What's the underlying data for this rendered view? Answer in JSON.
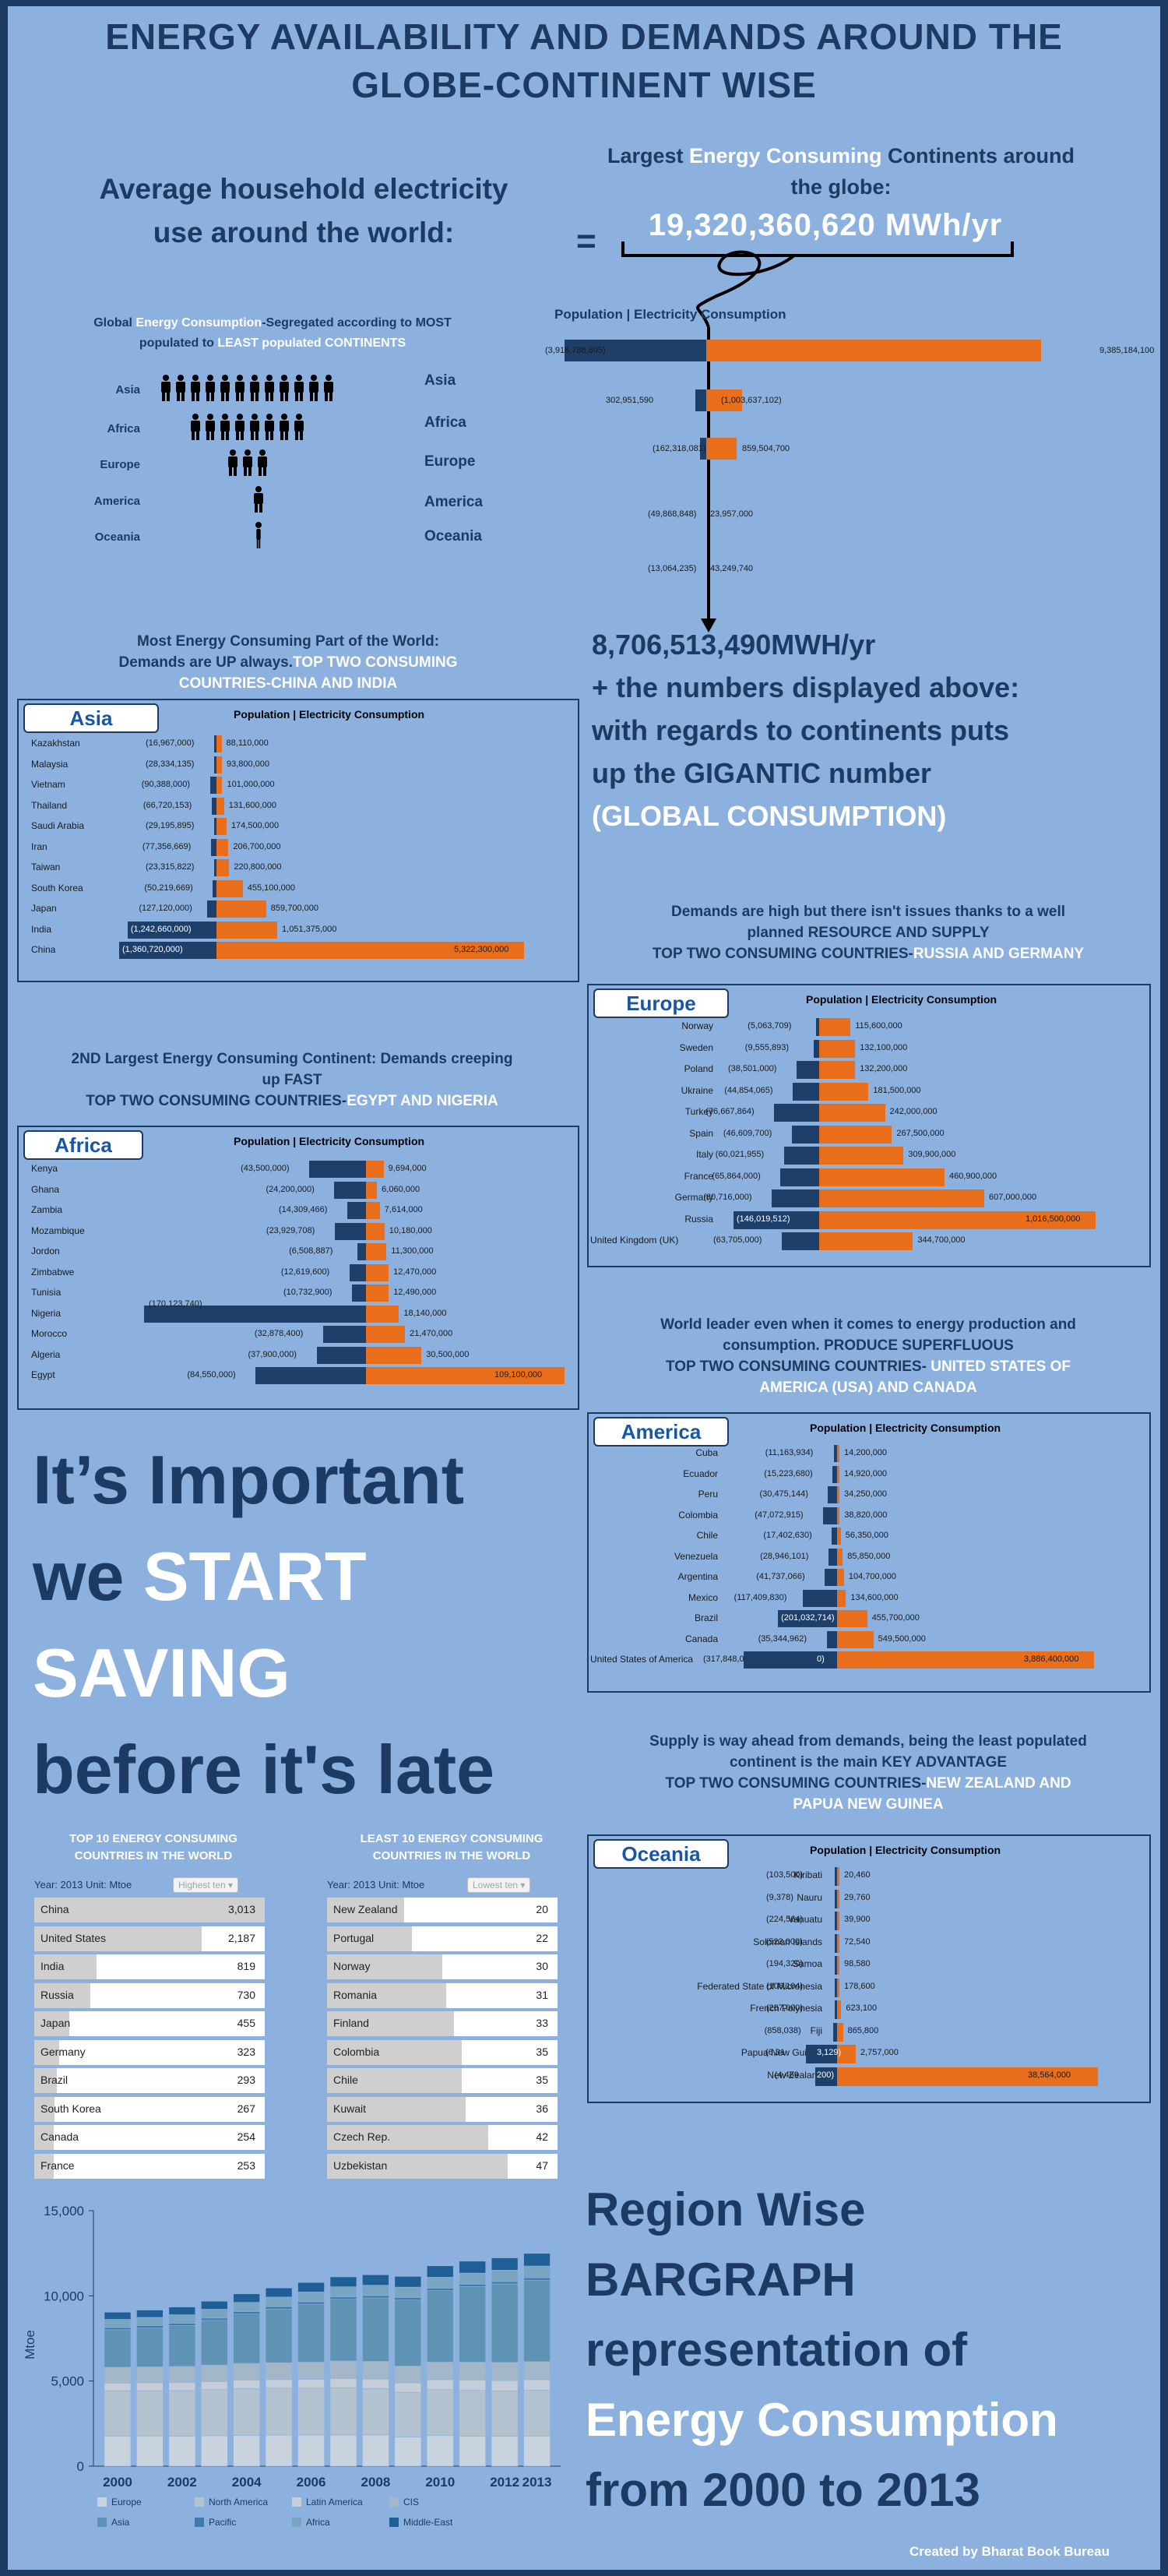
{
  "header": {
    "title_line1": "ENERGY AVAILABILITY AND DEMANDS AROUND THE",
    "title_line2": "GLOBE-CONTINENT WISE"
  },
  "intro": {
    "avg_line1": "Average household electricity",
    "avg_line2": "use around the world:",
    "equals": "=",
    "largest_a": "Largest ",
    "largest_b": "Energy Consuming",
    "largest_c": " Continents around",
    "largest_d": "the globe:",
    "big_number": "19,320,360,620 MWh/yr"
  },
  "global": {
    "heading_a": "Global ",
    "heading_b": "Energy Consumption",
    "heading_c": "-Segregated according to MOST",
    "heading_d": "populated to ",
    "heading_e": "LEAST",
    "heading_f": " populated CONTINENTS",
    "pop_header": "Population | Electricity Consumption",
    "continents": [
      {
        "left": "Asia",
        "right": "Asia",
        "people": 12,
        "pop": "(3,918,788,805)",
        "cons": "9,385,184,100",
        "popv": 3918788805,
        "consv": 9385184100
      },
      {
        "left": "Africa",
        "right": "Africa",
        "people": 8,
        "pop": "302,951,590",
        "cons": "(1,003,637,102)",
        "popv": 302951590,
        "consv": 1003637102
      },
      {
        "left": "Europe",
        "right": "Europe",
        "people": 3,
        "pop": "(162,318,081)",
        "cons": "859,504,700",
        "popv": 162318081,
        "consv": 859504700
      },
      {
        "left": "America",
        "right": "America",
        "people": 1,
        "pop": "(49,868,848)",
        "cons": "23,957,000",
        "popv": 49868848,
        "consv": 23957000
      },
      {
        "left": "Oceania",
        "right": "Oceania",
        "people": 1,
        "pop": "(13,064,235)",
        "cons": "43,249,740",
        "popv": 13064235,
        "consv": 43249740
      }
    ]
  },
  "summary": {
    "line1": "8,706,513,490MWH/yr",
    "line2": "+ the numbers displayed above:",
    "line3": "with regards to continents puts",
    "line4": "up the GIGANTIC number",
    "line5": "(GLOBAL CONSUMPTION)"
  },
  "asia": {
    "heading1": "Most Energy Consuming Part of the World:",
    "heading2a": "Demands are UP always.",
    "heading2b": "TOP TWO CONSUMING",
    "heading3": "COUNTRIES-CHINA AND INDIA",
    "badge": "Asia",
    "header": "Population | Electricity Consumption",
    "rows": [
      {
        "name": "Kazakhstan",
        "pop": "(16,967,000)",
        "cons": "88,110,000",
        "popv": 16967000,
        "consv": 88110000
      },
      {
        "name": "Malaysia",
        "pop": "(28,334,135)",
        "cons": "93,800,000",
        "popv": 28334135,
        "consv": 93800000
      },
      {
        "name": "Vietnam",
        "pop": "(90,388,000)",
        "cons": "101,000,000",
        "popv": 90388000,
        "consv": 101000000
      },
      {
        "name": "Thailand",
        "pop": "(66,720,153)",
        "cons": "131,600,000",
        "popv": 66720153,
        "consv": 131600000
      },
      {
        "name": "Saudi Arabia",
        "pop": "(29,195,895)",
        "cons": "174,500,000",
        "popv": 29195895,
        "consv": 174500000
      },
      {
        "name": "Iran",
        "pop": "(77,356,669)",
        "cons": "206,700,000",
        "popv": 77356669,
        "consv": 206700000
      },
      {
        "name": "Taiwan",
        "pop": "(23,315,822)",
        "cons": "220,800,000",
        "popv": 23315822,
        "consv": 220800000
      },
      {
        "name": "South Korea",
        "pop": "(50,219,669)",
        "cons": "455,100,000",
        "popv": 50219669,
        "consv": 455100000
      },
      {
        "name": "Japan",
        "pop": "(127,120,000)",
        "cons": "859,700,000",
        "popv": 127120000,
        "consv": 859700000
      },
      {
        "name": "India",
        "pop": "(1,242,660,000)",
        "cons": "1,051,375,000",
        "popv": 1242660000,
        "consv": 1051375000
      },
      {
        "name": "China",
        "pop": "(1,360,720,000)",
        "cons": "5,322,300,000",
        "popv": 1360720000,
        "consv": 5322300000
      }
    ]
  },
  "europe": {
    "heading1": "Demands are high but there isn't issues thanks to a well",
    "heading2": "planned RESOURCE AND SUPPLY",
    "heading3a": "TOP TWO CONSUMING COUNTRIES-",
    "heading3b": "RUSSIA AND GERMANY",
    "badge": "Europe",
    "header": "Population | Electricity Consumption",
    "rows": [
      {
        "name": "Norway",
        "pop": "(5,063,709)",
        "cons": "115,600,000",
        "popv": 5063709,
        "consv": 115600000
      },
      {
        "name": "Sweden",
        "pop": "(9,555,893)",
        "cons": "132,100,000",
        "popv": 9555893,
        "consv": 132100000
      },
      {
        "name": "Poland",
        "pop": "(38,501,000)",
        "cons": "132,200,000",
        "popv": 38501000,
        "consv": 132200000
      },
      {
        "name": "Ukraine",
        "pop": "(44,854,065)",
        "cons": "181,500,000",
        "popv": 44854065,
        "consv": 181500000
      },
      {
        "name": "Turkey",
        "pop": "(76,667,864)",
        "cons": "242,000,000",
        "popv": 76667864,
        "consv": 242000000
      },
      {
        "name": "Spain",
        "pop": "(46,609,700)",
        "cons": "267,500,000",
        "popv": 46609700,
        "consv": 267500000
      },
      {
        "name": "Italy",
        "pop": "(60,021,955)",
        "cons": "309,900,000",
        "popv": 60021955,
        "consv": 309900000
      },
      {
        "name": "France",
        "pop": "(65,864,000)",
        "cons": "460,900,000",
        "popv": 65864000,
        "consv": 460900000
      },
      {
        "name": "Germany",
        "pop": "(80,716,000)",
        "cons": "607,000,000",
        "popv": 80716000,
        "consv": 607000000
      },
      {
        "name": "Russia",
        "pop": "(146,019,512)",
        "cons": "1,016,500,000",
        "popv": 146019512,
        "consv": 1016500000
      },
      {
        "name": "United Kingdom (UK)",
        "pop": "(63,705,000)",
        "cons": "344,700,000",
        "popv": 63705000,
        "consv": 344700000
      }
    ]
  },
  "africa": {
    "heading1": "2ND Largest Energy Consuming Continent: Demands creeping",
    "heading2": "up FAST",
    "heading3a": "TOP TWO CONSUMING COUNTRIES-",
    "heading3b": "EGYPT AND NIGERIA",
    "badge": "Africa",
    "header": "Population | Electricity Consumption",
    "rows": [
      {
        "name": "Kenya",
        "pop": "(43,500,000)",
        "cons": "9,694,000",
        "popv": 43500000,
        "consv": 9694000
      },
      {
        "name": "Ghana",
        "pop": "(24,200,000)",
        "cons": "6,060,000",
        "popv": 24200000,
        "consv": 6060000
      },
      {
        "name": "Zambia",
        "pop": "(14,309,466)",
        "cons": "7,614,000",
        "popv": 14309466,
        "consv": 7614000
      },
      {
        "name": "Mozambique",
        "pop": "(23,929,708)",
        "cons": "10,180,000",
        "popv": 23929708,
        "consv": 10180000
      },
      {
        "name": "Jordon",
        "pop": "(6,508,887)",
        "cons": "11,300,000",
        "popv": 6508887,
        "consv": 11300000
      },
      {
        "name": "Zimbabwe",
        "pop": "(12,619,600)",
        "cons": "12,470,000",
        "popv": 12619600,
        "consv": 12470000
      },
      {
        "name": "Tunisia",
        "pop": "(10,732,900)",
        "cons": "12,490,000",
        "popv": 10732900,
        "consv": 12490000
      },
      {
        "name": "Nigeria",
        "pop": "(170,123,740)",
        "cons": "18,140,000",
        "popv": 170123740,
        "consv": 18140000
      },
      {
        "name": "Morocco",
        "pop": "(32,878,400)",
        "cons": "21,470,000",
        "popv": 32878400,
        "consv": 21470000
      },
      {
        "name": "Algeria",
        "pop": "(37,900,000)",
        "cons": "30,500,000",
        "popv": 37900000,
        "consv": 30500000
      },
      {
        "name": "Egypt",
        "pop": "(84,550,000)",
        "cons": "109,100,000",
        "popv": 84550000,
        "consv": 109100000
      }
    ]
  },
  "america": {
    "heading1": "World leader even when it comes to energy production and",
    "heading2": "consumption. PRODUCE SUPERFLUOUS",
    "heading3a": "TOP TWO CONSUMING COUNTRIES- ",
    "heading3b": "UNITED STATES OF",
    "heading4": "AMERICA (USA) AND CANADA",
    "badge": "America",
    "header": "Population | Electricity Consumption",
    "rows": [
      {
        "name": "Cuba",
        "pop": "(11,163,934)",
        "cons": "14,200,000",
        "popv": 11163934,
        "consv": 14200000
      },
      {
        "name": "Ecuador",
        "pop": "(15,223,680)",
        "cons": "14,920,000",
        "popv": 15223680,
        "consv": 14920000
      },
      {
        "name": "Peru",
        "pop": "(30,475,144)",
        "cons": "34,250,000",
        "popv": 30475144,
        "consv": 34250000
      },
      {
        "name": "Colombia",
        "pop": "(47,072,915)",
        "cons": "38,820,000",
        "popv": 47072915,
        "consv": 38820000
      },
      {
        "name": "Chile",
        "pop": "(17,402,630)",
        "cons": "56,350,000",
        "popv": 17402630,
        "consv": 56350000
      },
      {
        "name": "Venezuela",
        "pop": "(28,946,101)",
        "cons": "85,850,000",
        "popv": 28946101,
        "consv": 85850000
      },
      {
        "name": "Argentina",
        "pop": "(41,737,066)",
        "cons": "104,700,000",
        "popv": 41737066,
        "consv": 104700000
      },
      {
        "name": "Mexico",
        "pop": "(117,409,830)",
        "cons": "134,600,000",
        "popv": 117409830,
        "consv": 134600000
      },
      {
        "name": "Brazil",
        "pop": "(201,032,714)",
        "cons": "455,700,000",
        "popv": 201032714,
        "consv": 455700000
      },
      {
        "name": "Canada",
        "pop": "(35,344,962)",
        "cons": "549,500,000",
        "popv": 35344962,
        "consv": 549500000
      },
      {
        "name": "United States of America",
        "pop": "(317,848,0",
        "popb": "0)",
        "cons": "3,886,400,000",
        "popv": 317848000,
        "consv": 3886400000
      }
    ]
  },
  "oceania": {
    "heading1": "Supply is way ahead from demands, being the least populated",
    "heading2": "continent is the main KEY ADVANTAGE",
    "heading3a": "TOP TWO CONSUMING COUNTRIES-",
    "heading3b": "NEW ZEALAND AND",
    "heading4": "PAPUA NEW GUINEA",
    "badge": "Oceania",
    "header": "Population | Electricity Consumption",
    "rows": [
      {
        "name": "Kiribati",
        "pop": "(103,500)",
        "cons": "20,460",
        "popv": 103500,
        "consv": 20460
      },
      {
        "name": "Nauru",
        "pop": "(9,378)",
        "cons": "29,760",
        "popv": 9378,
        "consv": 29760
      },
      {
        "name": "Vanuatu",
        "pop": "(224,564)",
        "cons": "39,900",
        "popv": 224564,
        "consv": 39900
      },
      {
        "name": "Solomon Islands",
        "pop": "(523,000)",
        "cons": "72,540",
        "popv": 523000,
        "consv": 72540
      },
      {
        "name": "Samoa",
        "pop": "(194,320)",
        "cons": "98,580",
        "popv": 194320,
        "consv": 98580
      },
      {
        "name": "Federated State of Micronesia",
        "pop": "(106,104)",
        "cons": "178,600",
        "popv": 106104,
        "consv": 178600
      },
      {
        "name": "French Polynesia",
        "pop": "(267,000)",
        "cons": "623,100",
        "popv": 267000,
        "consv": 623100
      },
      {
        "name": "Fiji",
        "pop": "(858,038)",
        "cons": "865,800",
        "popv": 858038,
        "consv": 865800
      },
      {
        "name": "Papua New Guinea",
        "pop": "(6,31",
        "popb": "3,129)",
        "cons": "2,757,000",
        "popv": 6313129,
        "consv": 2757000
      },
      {
        "name": "New Zealand",
        "pop": "(4,469",
        "popb": "200)",
        "cons": "38,564,000",
        "popv": 4469200,
        "consv": 38564000
      }
    ]
  },
  "slogan": {
    "l1": "It’s Important",
    "l2a": "we ",
    "l2b": "START",
    "l3": "SAVING",
    "l4": "before it's late"
  },
  "top10": {
    "title1": "TOP 10 ENERGY CONSUMING",
    "title2": "COUNTRIES IN THE WORLD",
    "meta": "Year: 2013   Unit: Mtoe",
    "button": "Highest ten ▾",
    "rows": [
      {
        "name": "China",
        "value": "3,013",
        "v": 3013
      },
      {
        "name": "United States",
        "value": "2,187",
        "v": 2187
      },
      {
        "name": "India",
        "value": "819",
        "v": 819
      },
      {
        "name": "Russia",
        "value": "730",
        "v": 730
      },
      {
        "name": "Japan",
        "value": "455",
        "v": 455
      },
      {
        "name": "Germany",
        "value": "323",
        "v": 323
      },
      {
        "name": "Brazil",
        "value": "293",
        "v": 293
      },
      {
        "name": "South Korea",
        "value": "267",
        "v": 267
      },
      {
        "name": "Canada",
        "value": "254",
        "v": 254
      },
      {
        "name": "France",
        "value": "253",
        "v": 253
      }
    ]
  },
  "least10": {
    "title1": "LEAST 10 ENERGY CONSUMING",
    "title2": "COUNTRIES IN THE WORLD",
    "meta": "Year: 2013   Unit: Mtoe",
    "button": "Lowest ten ▾",
    "rows": [
      {
        "name": "New Zealand",
        "value": "20",
        "v": 20
      },
      {
        "name": "Portugal",
        "value": "22",
        "v": 22
      },
      {
        "name": "Norway",
        "value": "30",
        "v": 30
      },
      {
        "name": "Romania",
        "value": "31",
        "v": 31
      },
      {
        "name": "Finland",
        "value": "33",
        "v": 33
      },
      {
        "name": "Colombia",
        "value": "35",
        "v": 35
      },
      {
        "name": "Chile",
        "value": "35",
        "v": 35
      },
      {
        "name": "Kuwait",
        "value": "36",
        "v": 36
      },
      {
        "name": "Czech Rep.",
        "value": "42",
        "v": 42
      },
      {
        "name": "Uzbekistan",
        "value": "47",
        "v": 47
      }
    ]
  },
  "region": {
    "l1": "Region Wise",
    "l2": "BARGRAPH",
    "l3": "representation of",
    "l4": "Energy Consumption",
    "l5": "from 2000 to 2013"
  },
  "footer": {
    "credit": "Created by Bharat Book Bureau"
  },
  "chart_data": {
    "type": "bar",
    "stacked": true,
    "title": "",
    "xlabel": "",
    "ylabel": "Mtoe",
    "ylim": [
      0,
      15000
    ],
    "yticks": [
      "0",
      "5,000",
      "10,000",
      "15,000"
    ],
    "xticks": [
      "2000",
      "2002",
      "2004",
      "2006",
      "2008",
      "2010",
      "2012",
      "2013"
    ],
    "categories": [
      "2000",
      "2001",
      "2002",
      "2003",
      "2004",
      "2005",
      "2006",
      "2007",
      "2008",
      "2009",
      "2010",
      "2011",
      "2012",
      "2013"
    ],
    "series": [
      {
        "name": "Europe",
        "values": [
          1750,
          1770,
          1760,
          1790,
          1810,
          1820,
          1830,
          1830,
          1830,
          1720,
          1800,
          1760,
          1760,
          1750
        ]
      },
      {
        "name": "North America",
        "values": [
          2680,
          2660,
          2680,
          2700,
          2750,
          2760,
          2740,
          2780,
          2730,
          2620,
          2700,
          2690,
          2660,
          2710
        ]
      },
      {
        "name": "Latin America",
        "values": [
          450,
          460,
          465,
          475,
          490,
          505,
          520,
          540,
          555,
          555,
          580,
          595,
          610,
          620
        ]
      },
      {
        "name": "CIS",
        "values": [
          930,
          945,
          950,
          975,
          985,
          990,
          1020,
          1030,
          1040,
          980,
          1030,
          1060,
          1070,
          1060
        ]
      },
      {
        "name": "Asia",
        "values": [
          2200,
          2280,
          2400,
          2620,
          2900,
          3150,
          3400,
          3620,
          3720,
          3880,
          4200,
          4440,
          4600,
          4780
        ]
      },
      {
        "name": "Pacific",
        "values": [
          130,
          130,
          132,
          134,
          138,
          138,
          140,
          142,
          140,
          137,
          142,
          140,
          138,
          140
        ]
      },
      {
        "name": "Africa",
        "values": [
          480,
          490,
          505,
          520,
          545,
          565,
          575,
          590,
          610,
          620,
          640,
          650,
          670,
          690
        ]
      },
      {
        "name": "Middle-East",
        "values": [
          420,
          430,
          450,
          470,
          500,
          530,
          560,
          580,
          610,
          630,
          670,
          700,
          720,
          740
        ]
      }
    ],
    "legend": "bottom",
    "colors": {
      "Europe": "#c9d3de",
      "North America": "#b3c2cf",
      "Latin America": "#c5ced8",
      "CIS": "#a3b7c8",
      "Asia": "#5f93b4",
      "Pacific": "#3f7cab",
      "Africa": "#7aa5c2",
      "Middle-East": "#1f5f97"
    }
  },
  "colors": {
    "background": "#8cb1df",
    "frame": "#1c3a62",
    "navy": "#1f3f6b",
    "orange": "#e86e1c",
    "white": "#ffffff"
  }
}
